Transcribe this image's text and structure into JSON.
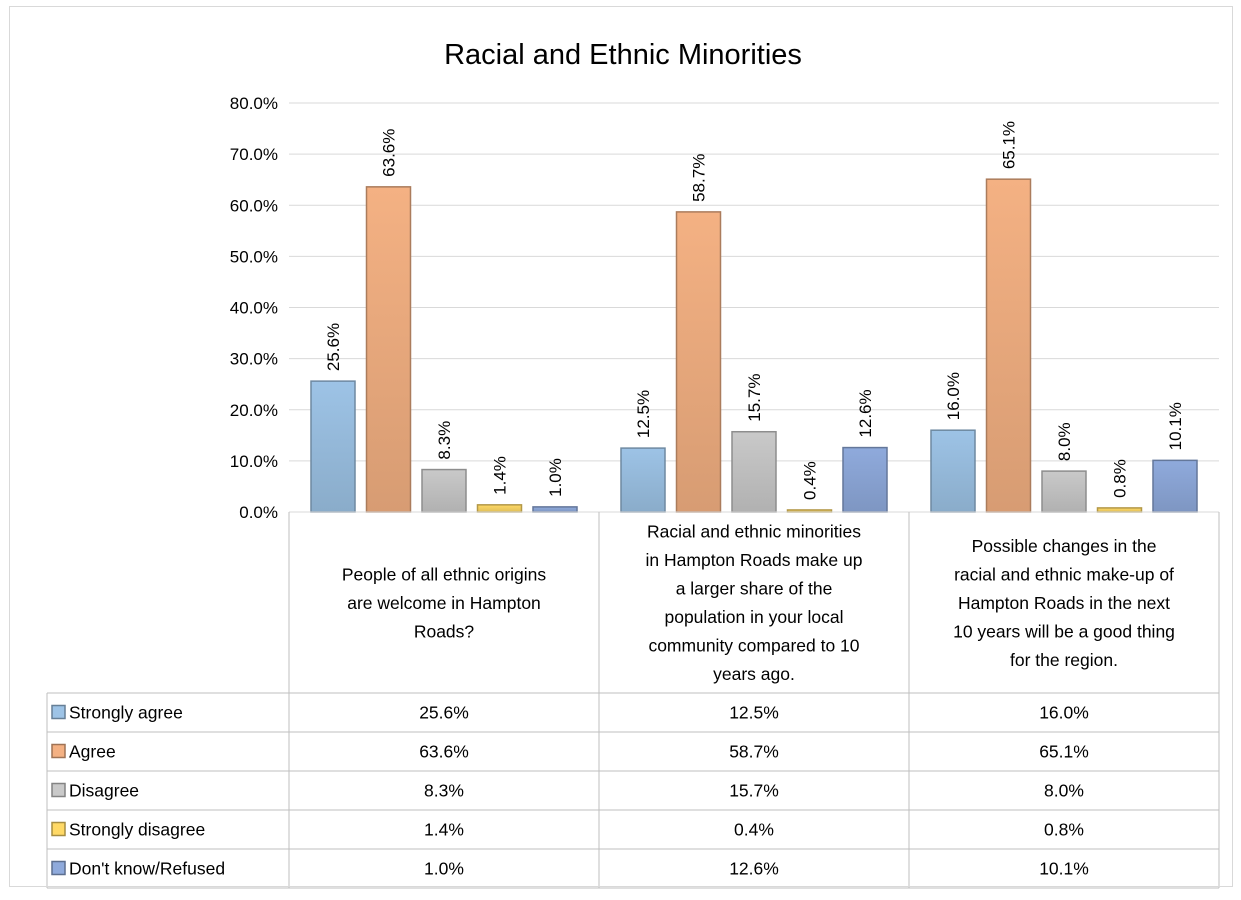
{
  "chart_data": {
    "type": "bar",
    "title": "Racial and Ethnic Minorities",
    "categories": [
      [
        "People of all ethnic origins",
        "are welcome in Hampton",
        "Roads?"
      ],
      [
        "Racial and ethnic minorities",
        "in Hampton Roads make up",
        "a larger share of the",
        "population in your local",
        "community compared to 10",
        "years ago."
      ],
      [
        "Possible changes in the",
        "racial and ethnic make-up of",
        "Hampton Roads in the next",
        "10 years will be a good thing",
        "for the region."
      ]
    ],
    "series": [
      {
        "name": "Strongly agree",
        "values": [
          25.6,
          12.5,
          16.0
        ],
        "labels": [
          "25.6%",
          "12.5%",
          "16.0%"
        ],
        "color": "#9dc3e6"
      },
      {
        "name": "Agree",
        "values": [
          63.6,
          58.7,
          65.1
        ],
        "labels": [
          "63.6%",
          "58.7%",
          "65.1%"
        ],
        "color": "#f4b183"
      },
      {
        "name": "Disagree",
        "values": [
          8.3,
          15.7,
          8.0
        ],
        "labels": [
          "8.3%",
          "15.7%",
          "8.0%"
        ],
        "color": "#c9c9c9"
      },
      {
        "name": "Strongly disagree",
        "values": [
          1.4,
          0.4,
          0.8
        ],
        "labels": [
          "1.4%",
          "0.4%",
          "0.8%"
        ],
        "color": "#ffd966"
      },
      {
        "name": "Don't know/Refused",
        "values": [
          1.0,
          12.6,
          10.1
        ],
        "labels": [
          "1.0%",
          "12.6%",
          "10.1%"
        ],
        "color": "#8faadc"
      }
    ],
    "yticks": [
      "0.0%",
      "10.0%",
      "20.0%",
      "30.0%",
      "40.0%",
      "50.0%",
      "60.0%",
      "70.0%",
      "80.0%"
    ],
    "ylim": [
      0,
      80
    ],
    "grid": true,
    "legend": "data-table",
    "xlabel": "",
    "ylabel": ""
  }
}
